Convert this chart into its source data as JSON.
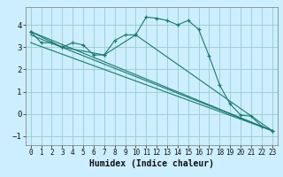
{
  "xlabel": "Humidex (Indice chaleur)",
  "bg_color": "#cceeff",
  "grid_color": "#99cccc",
  "line_color": "#1a7a6e",
  "xlim": [
    -0.5,
    23.5
  ],
  "ylim": [
    -1.4,
    4.8
  ],
  "xticks": [
    0,
    1,
    2,
    3,
    4,
    5,
    6,
    7,
    8,
    9,
    10,
    11,
    12,
    13,
    14,
    15,
    16,
    17,
    18,
    19,
    20,
    21,
    22,
    23
  ],
  "yticks": [
    -1,
    0,
    1,
    2,
    3,
    4
  ],
  "line1_x": [
    0,
    1,
    2,
    3,
    4,
    5,
    6,
    7,
    8,
    9,
    10,
    11,
    12,
    13,
    14,
    15,
    16,
    17,
    18,
    19,
    20,
    21,
    22,
    23
  ],
  "line1_y": [
    3.7,
    3.2,
    3.2,
    3.0,
    3.2,
    3.1,
    2.65,
    2.65,
    3.3,
    3.55,
    3.55,
    4.35,
    4.3,
    4.2,
    4.0,
    4.2,
    3.8,
    2.6,
    1.3,
    0.45,
    -0.05,
    -0.1,
    -0.55,
    -0.75
  ],
  "line2_x": [
    0,
    3,
    7,
    10,
    23
  ],
  "line2_y": [
    3.7,
    3.0,
    2.65,
    3.55,
    -0.75
  ],
  "line3_x": [
    0,
    23
  ],
  "line3_y": [
    3.7,
    -0.75
  ],
  "line4_x": [
    0,
    23
  ],
  "line4_y": [
    3.55,
    -0.75
  ],
  "line5_x": [
    0,
    23
  ],
  "line5_y": [
    3.2,
    -0.75
  ]
}
